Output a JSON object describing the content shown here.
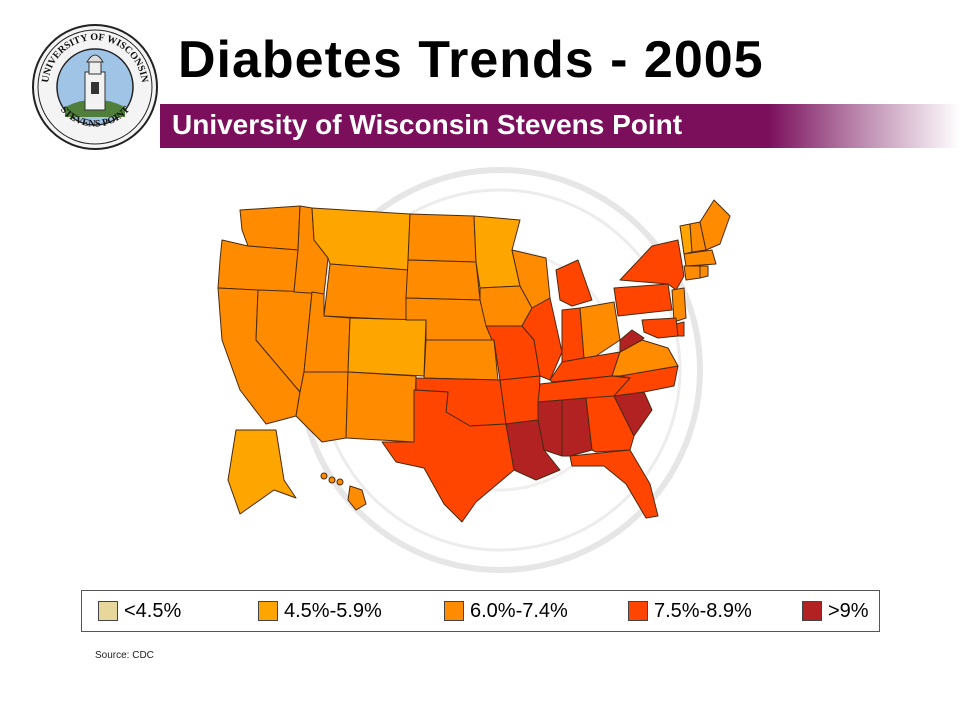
{
  "title": "Diabetes Trends - 2005",
  "subtitle": "University of Wisconsin Stevens Point",
  "seal": {
    "top_text": "UNIVERSITY OF WISCONSIN",
    "bottom_text": "STEVENS POINT"
  },
  "legend": [
    {
      "label": "<4.5%",
      "color": "#e8d79a"
    },
    {
      "label": "4.5%-5.9%",
      "color": "#ffa500"
    },
    {
      "label": "6.0%-7.4%",
      "color": "#ff8c00"
    },
    {
      "label": "7.5%-8.9%",
      "color": "#ff4500"
    },
    {
      "label": ">9%",
      "color": "#b22222"
    }
  ],
  "source": "Source: CDC",
  "map_data": {
    "WA": 2,
    "OR": 2,
    "CA": 2,
    "NV": 2,
    "ID": 2,
    "MT": 1,
    "WY": 2,
    "UT": 2,
    "AZ": 2,
    "CO": 1,
    "NM": 2,
    "ND": 2,
    "SD": 2,
    "NE": 2,
    "KS": 2,
    "OK": 3,
    "TX": 3,
    "MN": 1,
    "IA": 2,
    "MO": 3,
    "AR": 3,
    "LA": 4,
    "WI": 2,
    "IL": 3,
    "MI": 3,
    "IN": 3,
    "OH": 2,
    "KY": 3,
    "TN": 3,
    "MS": 4,
    "AL": 4,
    "GA": 3,
    "FL": 3,
    "SC": 4,
    "NC": 3,
    "VA": 2,
    "WV": 4,
    "PA": 3,
    "NY": 3,
    "VT": 1,
    "NH": 2,
    "ME": 2,
    "MA": 2,
    "CT": 2,
    "RI": 2,
    "NJ": 2,
    "DE": 3,
    "MD": 3,
    "AK": 1,
    "HI": 2
  }
}
